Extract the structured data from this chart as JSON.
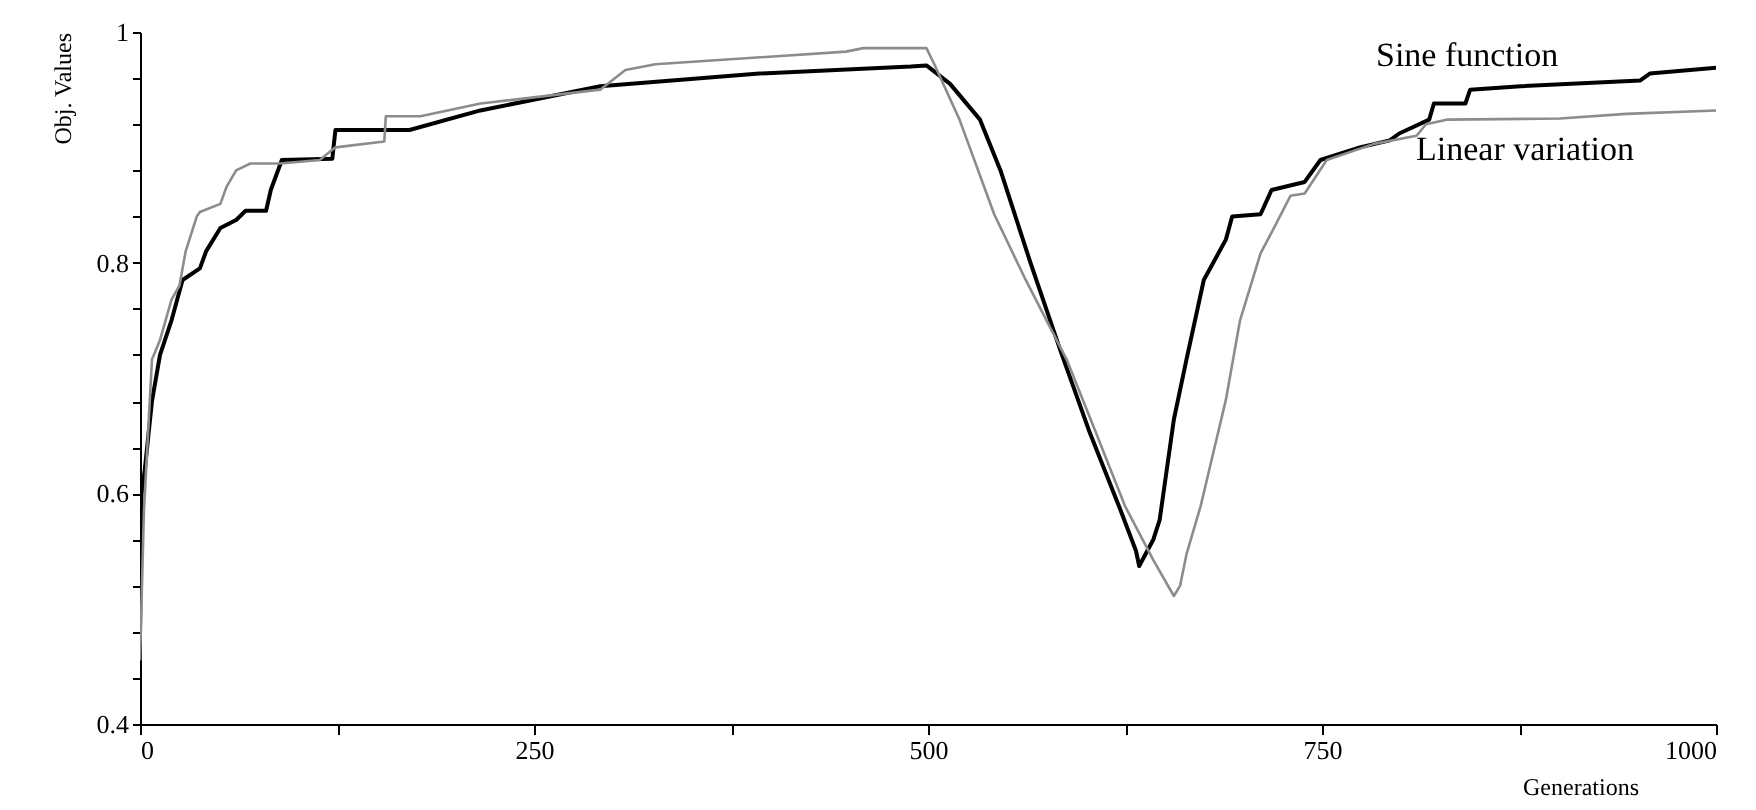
{
  "chart_data": {
    "type": "line",
    "xlabel": "Generations",
    "ylabel": "Obj. Values",
    "xlim": [
      0,
      1000
    ],
    "ylim": [
      0.4,
      1
    ],
    "xticks": [
      0,
      {
        "value": 125,
        "label": null
      },
      250,
      {
        "value": 375,
        "label": null
      },
      500,
      {
        "value": 625,
        "label": null
      },
      750,
      {
        "value": 875,
        "label": null
      },
      1000
    ],
    "yticks": [
      0.4,
      {
        "value": 0.44,
        "label": null
      },
      {
        "value": 0.48,
        "label": null
      },
      {
        "value": 0.52,
        "label": null
      },
      {
        "value": 0.56,
        "label": null
      },
      0.6,
      {
        "value": 0.64,
        "label": null
      },
      {
        "value": 0.68,
        "label": null
      },
      {
        "value": 0.72,
        "label": null
      },
      {
        "value": 0.76,
        "label": null
      },
      0.8,
      {
        "value": 0.84,
        "label": null
      },
      {
        "value": 0.88,
        "label": null
      },
      {
        "value": 0.92,
        "label": null
      },
      {
        "value": 0.96,
        "label": null
      },
      1
    ],
    "grid": false,
    "marker": "none",
    "line_style": "solid",
    "series": [
      {
        "name": "Sine function",
        "color": "#000000",
        "x": [
          0,
          1,
          3,
          7.6,
          12.7,
          20,
          27,
          38,
          42,
          51,
          61,
          67,
          80,
          83,
          90,
          122,
          124,
          171,
          216,
          292,
          393,
          489,
          499,
          514,
          533,
          546,
          565,
          584,
          602,
          622,
          632,
          634,
          643,
          647,
          656,
          664,
          675,
          689,
          693,
          711,
          718,
          739,
          749,
          774,
          793,
          799,
          818,
          821,
          841,
          844,
          876,
          952,
          958,
          1000
        ],
        "values": [
          0.478,
          0.6,
          0.62,
          0.68,
          0.72,
          0.75,
          0.785,
          0.795,
          0.81,
          0.83,
          0.837,
          0.845,
          0.845,
          0.863,
          0.889,
          0.89,
          0.915,
          0.915,
          0.932,
          0.953,
          0.964,
          0.97,
          0.971,
          0.955,
          0.924,
          0.88,
          0.8,
          0.724,
          0.655,
          0.586,
          0.55,
          0.537,
          0.56,
          0.577,
          0.664,
          0.716,
          0.785,
          0.82,
          0.84,
          0.842,
          0.863,
          0.87,
          0.889,
          0.9,
          0.906,
          0.912,
          0.924,
          0.938,
          0.938,
          0.95,
          0.953,
          0.958,
          0.964,
          0.969
        ]
      },
      {
        "name": "Linear variation",
        "color": "#8c8c8c",
        "x": [
          0,
          2.5,
          7.6,
          12.7,
          20,
          25,
          29,
          36,
          38,
          51,
          55,
          61,
          70,
          89,
          114,
          124,
          155,
          156,
          178,
          216,
          292,
          308,
          327,
          448,
          459,
          499,
          504,
          520,
          542,
          562,
          588,
          605,
          625,
          643,
          656,
          660,
          664,
          673,
          689,
          698,
          711,
          721,
          730,
          739,
          753,
          783,
          810,
          816,
          829,
          901,
          943,
          1000
        ],
        "values": [
          0.455,
          0.585,
          0.716,
          0.733,
          0.768,
          0.78,
          0.81,
          0.84,
          0.844,
          0.851,
          0.866,
          0.88,
          0.886,
          0.886,
          0.889,
          0.9,
          0.905,
          0.927,
          0.927,
          0.938,
          0.95,
          0.967,
          0.972,
          0.983,
          0.986,
          0.986,
          0.972,
          0.924,
          0.842,
          0.785,
          0.716,
          0.658,
          0.589,
          0.542,
          0.511,
          0.52,
          0.547,
          0.589,
          0.681,
          0.75,
          0.808,
          0.834,
          0.858,
          0.86,
          0.889,
          0.903,
          0.91,
          0.92,
          0.924,
          0.925,
          0.929,
          0.932
        ]
      }
    ]
  }
}
